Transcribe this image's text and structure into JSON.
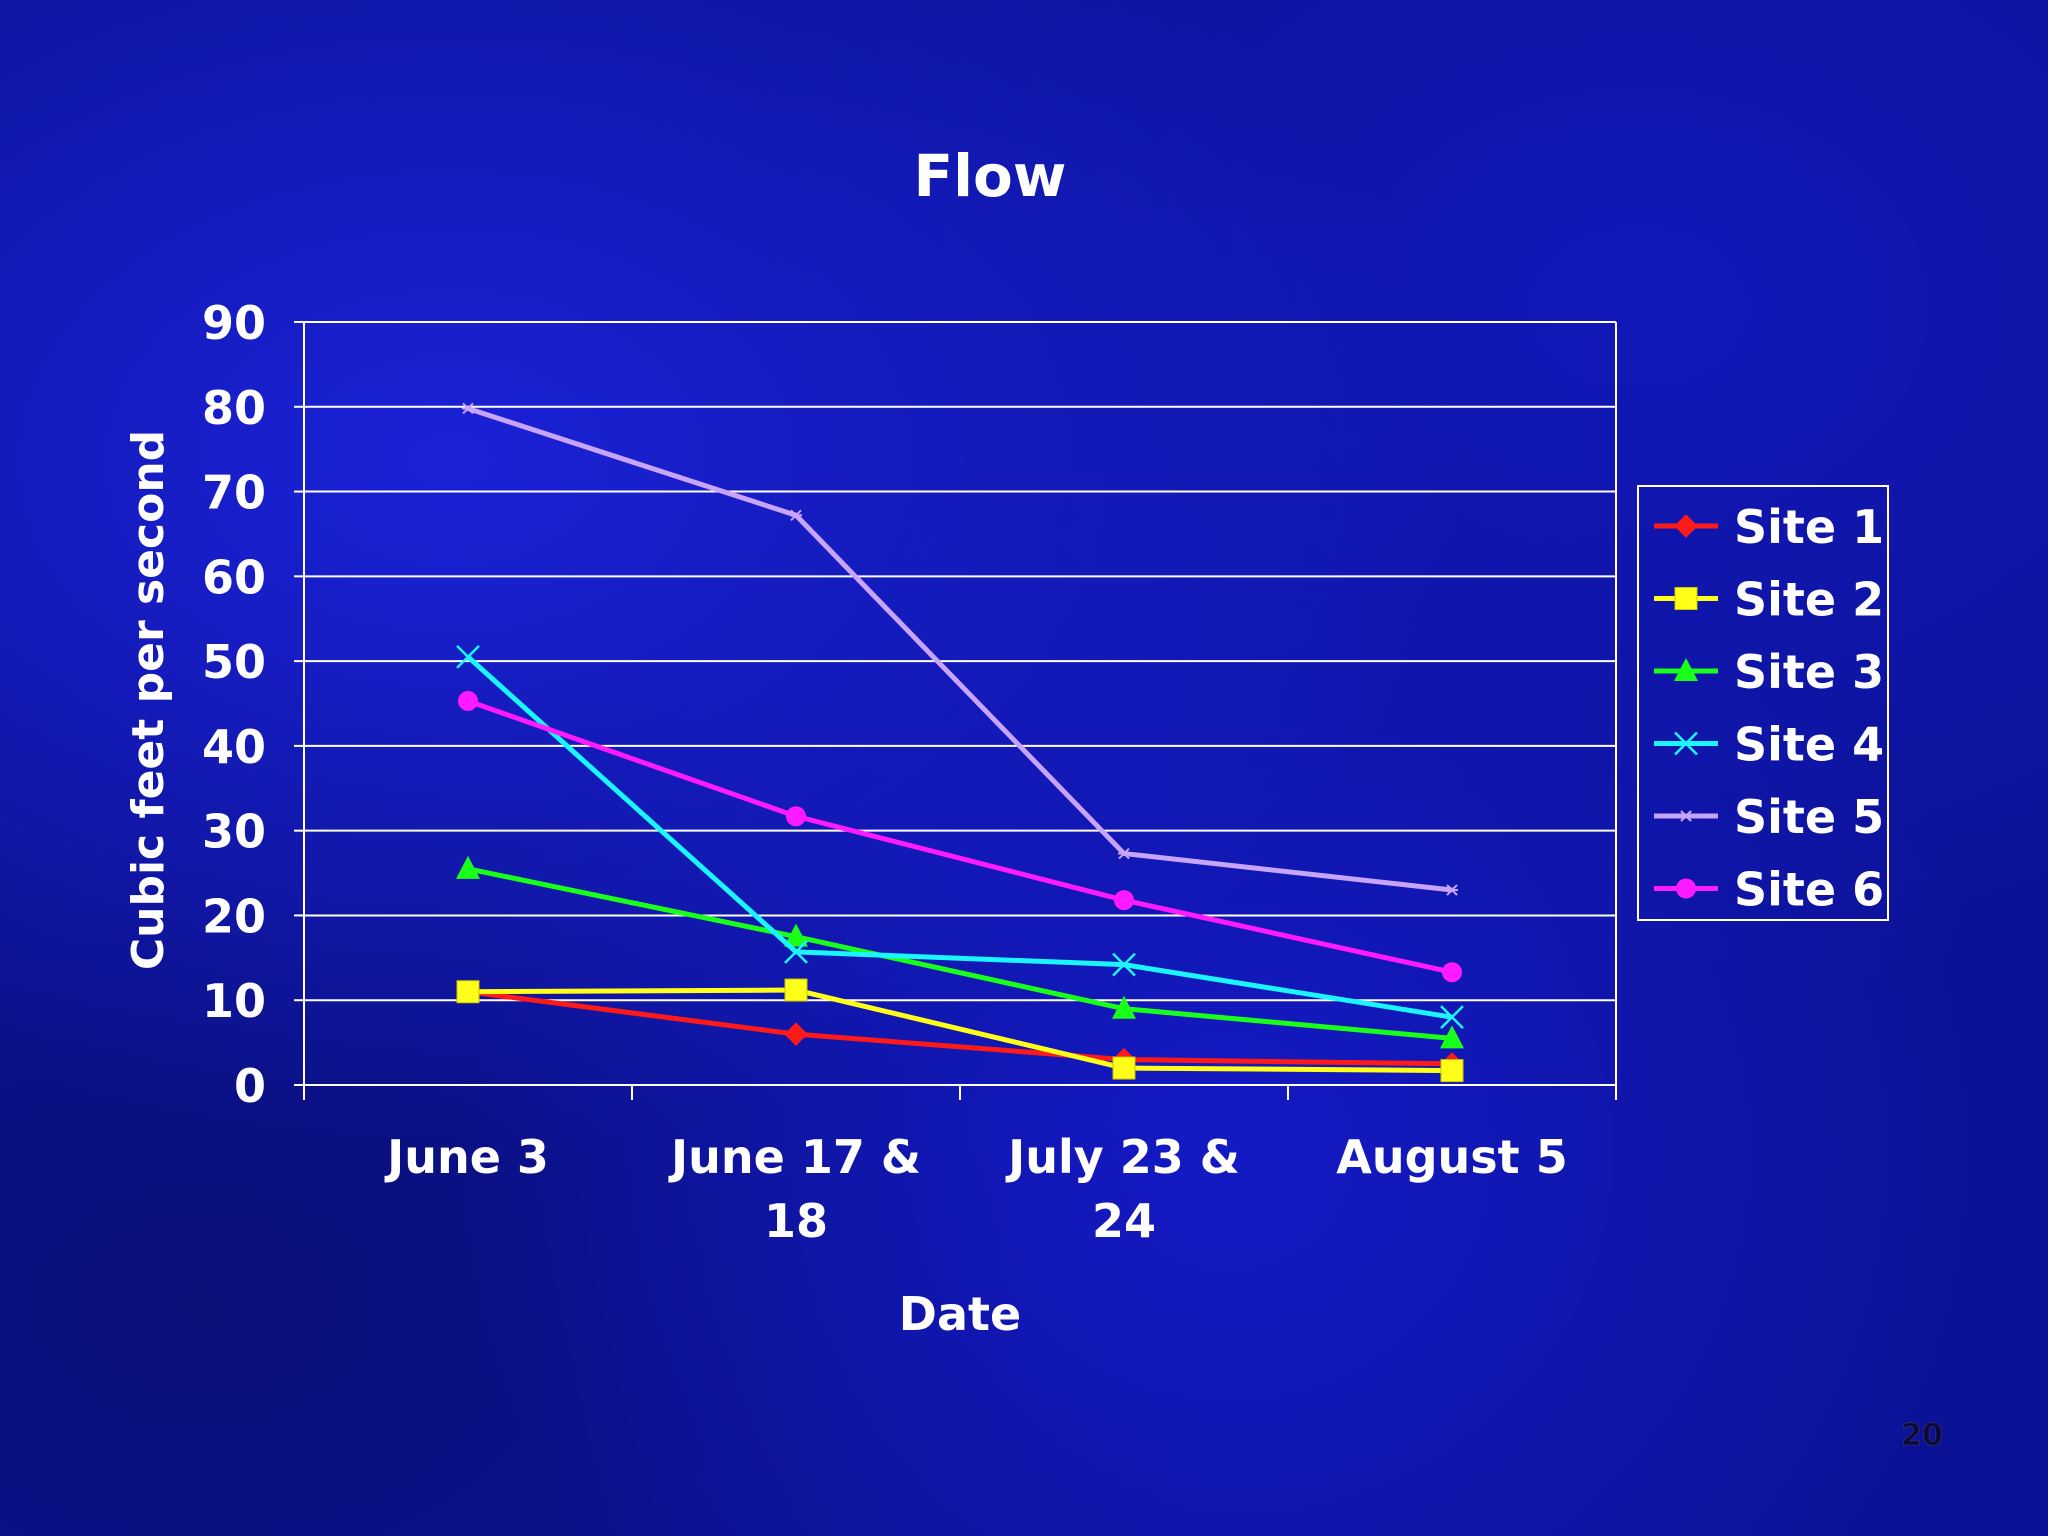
{
  "slide": {
    "page_number": "20"
  },
  "chart_data": {
    "type": "line",
    "title": "Flow",
    "xlabel": "Date",
    "ylabel": "Cubic feet per second",
    "categories": [
      [
        "June 3"
      ],
      [
        "June 17 &",
        "18"
      ],
      [
        "July 23 &",
        "24"
      ],
      [
        "August 5"
      ]
    ],
    "ylim": [
      0,
      90
    ],
    "yticks": [
      0,
      10,
      20,
      30,
      40,
      50,
      60,
      70,
      80,
      90
    ],
    "grid": true,
    "legend_position": "right",
    "series": [
      {
        "name": "Site 1",
        "color": "#ff1a1a",
        "marker": "diamond",
        "values": [
          11,
          6,
          3,
          2.5
        ]
      },
      {
        "name": "Site 2",
        "color": "#ffff1a",
        "marker": "square",
        "values": [
          11,
          11.2,
          2,
          1.7
        ]
      },
      {
        "name": "Site 3",
        "color": "#1aff1a",
        "marker": "triangle",
        "values": [
          25.5,
          17.5,
          9,
          5.5
        ]
      },
      {
        "name": "Site 4",
        "color": "#1af5ff",
        "marker": "x",
        "values": [
          50.5,
          15.7,
          14.2,
          8
        ]
      },
      {
        "name": "Site 5",
        "color": "#c9a4ff",
        "marker": "star",
        "values": [
          79.8,
          67.2,
          27.3,
          23
        ]
      },
      {
        "name": "Site 6",
        "color": "#ff1aff",
        "marker": "circle",
        "values": [
          45.3,
          31.7,
          21.8,
          13.3
        ]
      }
    ]
  }
}
